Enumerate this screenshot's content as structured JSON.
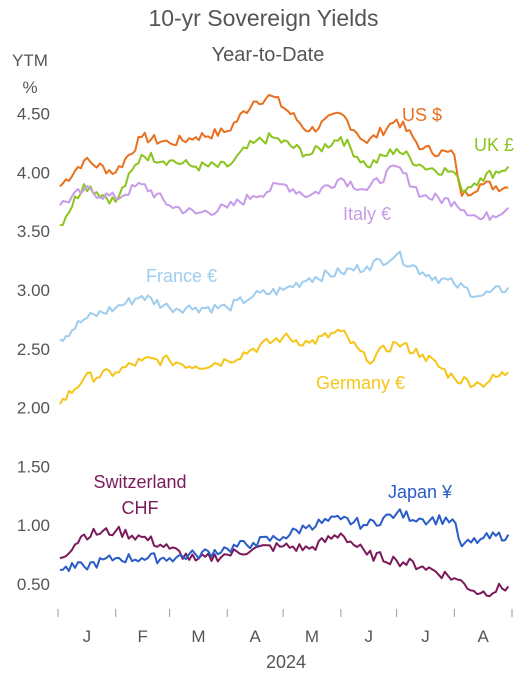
{
  "chart_data": {
    "type": "line",
    "title": "10-yr Sovereign Yields",
    "subtitle": "Year-to-Date",
    "ylabel_line1": "YTM",
    "ylabel_line2": "%",
    "xlabel": "2024",
    "x_ticks": [
      "J",
      "F",
      "M",
      "A",
      "M",
      "J",
      "J",
      "A"
    ],
    "y_ticks": [
      "0.50",
      "1.00",
      "1.50",
      "2.00",
      "2.50",
      "3.00",
      "3.50",
      "4.00",
      "4.50"
    ],
    "ylim": [
      0.3,
      4.75
    ],
    "grid": false,
    "series": [
      {
        "name": "US $",
        "color": "#e8701e",
        "x": [
          "2024-01-02",
          "2024-01-15",
          "2024-02-01",
          "2024-02-15",
          "2024-03-01",
          "2024-03-15",
          "2024-04-01",
          "2024-04-15",
          "2024-04-25",
          "2024-05-15",
          "2024-06-01",
          "2024-06-15",
          "2024-07-01",
          "2024-07-15",
          "2024-08-01",
          "2024-08-05",
          "2024-08-15",
          "2024-08-30"
        ],
        "values": [
          3.88,
          4.1,
          4.0,
          4.3,
          4.25,
          4.3,
          4.35,
          4.6,
          4.65,
          4.35,
          4.5,
          4.25,
          4.45,
          4.2,
          4.15,
          3.8,
          3.9,
          3.87
        ]
      },
      {
        "name": "UK £",
        "color": "#8cc41e",
        "x": [
          "2024-01-02",
          "2024-01-15",
          "2024-02-01",
          "2024-02-15",
          "2024-03-01",
          "2024-03-15",
          "2024-04-01",
          "2024-04-15",
          "2024-04-25",
          "2024-05-15",
          "2024-06-01",
          "2024-06-15",
          "2024-07-01",
          "2024-07-15",
          "2024-08-01",
          "2024-08-05",
          "2024-08-15",
          "2024-08-30"
        ],
        "values": [
          3.55,
          3.9,
          3.75,
          4.15,
          4.1,
          4.05,
          4.05,
          4.25,
          4.3,
          4.15,
          4.3,
          4.05,
          4.2,
          4.05,
          4.0,
          3.85,
          3.95,
          4.05
        ]
      },
      {
        "name": "Italy €",
        "color": "#c79be8",
        "x": [
          "2024-01-02",
          "2024-01-15",
          "2024-02-01",
          "2024-02-15",
          "2024-03-01",
          "2024-03-15",
          "2024-04-01",
          "2024-04-15",
          "2024-05-01",
          "2024-05-15",
          "2024-06-01",
          "2024-06-15",
          "2024-07-01",
          "2024-07-15",
          "2024-08-01",
          "2024-08-15",
          "2024-08-30"
        ],
        "values": [
          3.72,
          3.85,
          3.78,
          3.9,
          3.72,
          3.65,
          3.7,
          3.8,
          3.9,
          3.8,
          3.95,
          3.85,
          4.05,
          3.8,
          3.75,
          3.6,
          3.7
        ]
      },
      {
        "name": "France €",
        "color": "#9fcdee",
        "x": [
          "2024-01-02",
          "2024-01-15",
          "2024-02-01",
          "2024-02-15",
          "2024-03-01",
          "2024-03-15",
          "2024-04-01",
          "2024-04-15",
          "2024-05-01",
          "2024-05-15",
          "2024-06-01",
          "2024-06-15",
          "2024-07-01",
          "2024-07-15",
          "2024-08-01",
          "2024-08-15",
          "2024-08-30"
        ],
        "values": [
          2.58,
          2.75,
          2.85,
          2.95,
          2.85,
          2.85,
          2.85,
          2.95,
          3.0,
          3.1,
          3.15,
          3.2,
          3.3,
          3.15,
          3.05,
          2.95,
          3.02
        ]
      },
      {
        "name": "Germany €",
        "color": "#f5c518",
        "x": [
          "2024-01-02",
          "2024-01-15",
          "2024-02-01",
          "2024-02-15",
          "2024-03-01",
          "2024-03-15",
          "2024-04-01",
          "2024-04-15",
          "2024-05-01",
          "2024-05-15",
          "2024-06-01",
          "2024-06-15",
          "2024-07-01",
          "2024-07-15",
          "2024-08-01",
          "2024-08-15",
          "2024-08-30"
        ],
        "values": [
          2.03,
          2.25,
          2.3,
          2.4,
          2.4,
          2.35,
          2.4,
          2.5,
          2.6,
          2.55,
          2.65,
          2.4,
          2.55,
          2.45,
          2.25,
          2.2,
          2.3
        ]
      },
      {
        "name": "Switzerland CHF",
        "color": "#7a1a5a",
        "x": [
          "2024-01-02",
          "2024-01-15",
          "2024-02-01",
          "2024-02-15",
          "2024-03-01",
          "2024-03-15",
          "2024-04-01",
          "2024-04-15",
          "2024-05-01",
          "2024-05-15",
          "2024-06-01",
          "2024-06-15",
          "2024-07-01",
          "2024-07-15",
          "2024-08-01",
          "2024-08-15",
          "2024-08-30"
        ],
        "values": [
          0.72,
          0.92,
          0.95,
          0.9,
          0.8,
          0.7,
          0.75,
          0.8,
          0.82,
          0.8,
          0.93,
          0.75,
          0.7,
          0.65,
          0.55,
          0.42,
          0.48
        ]
      },
      {
        "name": "Japan ¥",
        "color": "#2a5cc8",
        "x": [
          "2024-01-02",
          "2024-01-15",
          "2024-02-01",
          "2024-02-15",
          "2024-03-01",
          "2024-03-15",
          "2024-04-01",
          "2024-04-15",
          "2024-05-01",
          "2024-05-15",
          "2024-06-01",
          "2024-06-15",
          "2024-07-01",
          "2024-07-15",
          "2024-07-31",
          "2024-08-05",
          "2024-08-15",
          "2024-08-30"
        ],
        "values": [
          0.62,
          0.65,
          0.72,
          0.72,
          0.72,
          0.75,
          0.8,
          0.85,
          0.9,
          1.0,
          1.05,
          1.0,
          1.1,
          1.05,
          1.05,
          0.82,
          0.88,
          0.92
        ]
      }
    ],
    "labels": {
      "us": "US $",
      "uk": "UK £",
      "italy": "Italy €",
      "france": "France €",
      "germany": "Germany €",
      "switzerland_line1": "Switzerland",
      "switzerland_line2": "CHF",
      "japan": "Japan ¥"
    },
    "colors": {
      "text": "#555555",
      "axis": "#999999"
    }
  }
}
